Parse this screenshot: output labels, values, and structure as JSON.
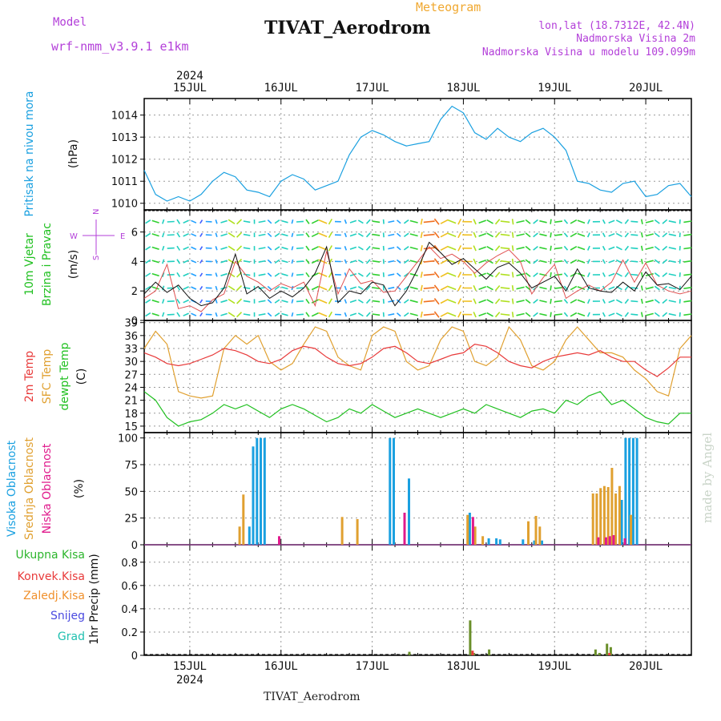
{
  "header": {
    "model_label": "Model",
    "model_name": "wrf-nmm_v3.9.1  e1km",
    "meteogram_label": "Meteogram",
    "station_title": "TIVAT_Aerodrom",
    "lonlat": "lon,lat (18.7312E, 42.4N)",
    "elevation": "Nadmorska Visina 2m",
    "model_elevation": "Nadmorska Visina u modelu 109.099m",
    "footer_station": "TIVAT_Aerodrom",
    "watermark": "made by Angel"
  },
  "colors": {
    "pressure": "#1aa0e0",
    "temp2m": "#e83a3a",
    "sfc_temp": "#e0a030",
    "dewpt": "#20c020",
    "high_cloud": "#1aa0e0",
    "mid_cloud": "#e0a030",
    "low_cloud": "#e01a8c",
    "total_precip": "#2cb52c",
    "conv_precip": "#e83a3a",
    "frozen_precip": "#f0902c",
    "snow": "#4a4ae0",
    "hail": "#20c0b0"
  },
  "chart_data": [
    {
      "type": "line",
      "panel": "pressure",
      "title": "Pritisak na nivou mora",
      "ylabel": "(hPa)",
      "year_label": "2024",
      "x_ticks": [
        "15JUL",
        "16JUL",
        "17JUL",
        "18JUL",
        "19JUL",
        "20JUL"
      ],
      "xlim_hours": [
        -12,
        132
      ],
      "ylim": [
        1009.7,
        1014.75
      ],
      "y_ticks": [
        1010,
        1011,
        1012,
        1013,
        1014
      ],
      "grid": true,
      "series": [
        {
          "name": "Pritisak na nivou mora",
          "x_hours": [
            -12,
            -9,
            -6,
            -3,
            0,
            3,
            6,
            9,
            12,
            15,
            18,
            21,
            24,
            27,
            30,
            33,
            36,
            39,
            42,
            45,
            48,
            51,
            54,
            57,
            60,
            63,
            66,
            69,
            72,
            75,
            78,
            81,
            84,
            87,
            90,
            93,
            96,
            99,
            102,
            105,
            108,
            111,
            114,
            117,
            120,
            123,
            126,
            129,
            132
          ],
          "values": [
            1011.5,
            1010.4,
            1010.1,
            1010.3,
            1010.1,
            1010.4,
            1011.0,
            1011.4,
            1011.2,
            1010.6,
            1010.5,
            1010.3,
            1011.0,
            1011.3,
            1011.1,
            1010.6,
            1010.8,
            1011.0,
            1012.2,
            1013.0,
            1013.3,
            1013.1,
            1012.8,
            1012.6,
            1012.7,
            1012.8,
            1013.8,
            1014.4,
            1014.1,
            1013.2,
            1012.9,
            1013.4,
            1013.0,
            1012.8,
            1013.2,
            1013.4,
            1013.0,
            1012.4,
            1011.0,
            1010.9,
            1010.6,
            1010.5,
            1010.9,
            1011.0,
            1010.3,
            1010.4,
            1010.8,
            1010.9,
            1010.3
          ]
        }
      ]
    },
    {
      "type": "line",
      "panel": "wind",
      "title": "10m Vjetar",
      "subtitle": "Brzina i Pravac",
      "ylabel": "(m/s)",
      "compass": {
        "west": "W",
        "east": "E",
        "north": "N",
        "south": "S"
      },
      "ylim": [
        0,
        7.5
      ],
      "y_ticks": [
        0,
        2,
        4,
        6
      ],
      "grid": true,
      "series": [
        {
          "name": "10m Vjetar",
          "x_hours": [
            -12,
            -9,
            -6,
            -3,
            0,
            3,
            6,
            9,
            12,
            15,
            18,
            21,
            24,
            27,
            30,
            33,
            36,
            39,
            42,
            45,
            48,
            51,
            54,
            57,
            60,
            63,
            66,
            69,
            72,
            75,
            78,
            81,
            84,
            87,
            90,
            93,
            96,
            99,
            102,
            105,
            108,
            111,
            114,
            117,
            120,
            123,
            126,
            129,
            132
          ],
          "values": [
            1.8,
            2.6,
            1.9,
            2.4,
            1.5,
            1.0,
            1.2,
            2.2,
            4.5,
            1.8,
            2.3,
            1.5,
            2.0,
            1.6,
            2.2,
            3.2,
            5.0,
            1.2,
            2.0,
            1.8,
            2.6,
            2.4,
            1.0,
            2.0,
            3.5,
            5.3,
            4.6,
            3.8,
            4.2,
            3.5,
            2.8,
            3.6,
            3.9,
            3.2,
            2.2,
            2.6,
            3.0,
            2.0,
            3.5,
            2.2,
            2.0,
            1.9,
            2.6,
            2.0,
            3.3,
            2.4,
            2.5,
            2.1,
            3.0
          ]
        },
        {
          "name": "gust",
          "x_hours": [
            -12,
            -9,
            -6,
            -3,
            0,
            3,
            6,
            9,
            12,
            15,
            18,
            21,
            24,
            27,
            30,
            33,
            36,
            39,
            42,
            45,
            48,
            51,
            54,
            57,
            60,
            63,
            66,
            69,
            72,
            75,
            78,
            81,
            84,
            87,
            90,
            93,
            96,
            99,
            102,
            105,
            108,
            111,
            114,
            117,
            120,
            123,
            126,
            129,
            132
          ],
          "values": [
            1.5,
            2.0,
            3.8,
            0.8,
            1.0,
            0.6,
            1.4,
            1.8,
            4.0,
            3.0,
            2.6,
            2.0,
            2.5,
            2.2,
            2.6,
            1.0,
            4.7,
            1.8,
            3.5,
            2.5,
            2.7,
            1.9,
            2.0,
            3.0,
            4.0,
            5.0,
            4.2,
            4.5,
            4.0,
            3.2,
            3.9,
            4.4,
            4.8,
            4.0,
            1.8,
            2.9,
            3.8,
            1.5,
            2.0,
            2.4,
            2.0,
            2.6,
            4.1,
            2.6,
            3.9,
            2.4,
            2.0,
            1.8,
            2.0
          ]
        }
      ]
    },
    {
      "type": "line",
      "panel": "temperature",
      "series_labels": [
        "2m Temp",
        "SFC Temp",
        "dewpt Temp"
      ],
      "ylabel": "(C)",
      "ylim": [
        13.5,
        39.5
      ],
      "y_ticks": [
        15,
        18,
        21,
        24,
        27,
        30,
        33,
        36,
        39
      ],
      "grid": true,
      "series": [
        {
          "name": "2m Temp",
          "x_hours": [
            -12,
            -9,
            -6,
            -3,
            0,
            3,
            6,
            9,
            12,
            15,
            18,
            21,
            24,
            27,
            30,
            33,
            36,
            39,
            42,
            45,
            48,
            51,
            54,
            57,
            60,
            63,
            66,
            69,
            72,
            75,
            78,
            81,
            84,
            87,
            90,
            93,
            96,
            99,
            102,
            105,
            108,
            111,
            114,
            117,
            120,
            123,
            126,
            129,
            132
          ],
          "values": [
            32,
            31,
            29.5,
            29,
            29.5,
            30.5,
            31.5,
            33,
            32.5,
            31.5,
            30,
            29.5,
            30.5,
            32.5,
            33.5,
            33,
            31,
            29.5,
            29,
            29.5,
            31,
            33,
            33.5,
            32,
            30,
            29.5,
            30.5,
            31.5,
            32,
            34,
            33.5,
            32,
            30,
            29,
            28.5,
            30,
            31,
            31.5,
            32,
            31.5,
            32.5,
            31,
            30,
            30,
            28,
            26.5,
            28.5,
            31,
            31
          ]
        },
        {
          "name": "SFC Temp",
          "x_hours": [
            -12,
            -9,
            -6,
            -3,
            0,
            3,
            6,
            9,
            12,
            15,
            18,
            21,
            24,
            27,
            30,
            33,
            36,
            39,
            42,
            45,
            48,
            51,
            54,
            57,
            60,
            63,
            66,
            69,
            72,
            75,
            78,
            81,
            84,
            87,
            90,
            93,
            96,
            99,
            102,
            105,
            108,
            111,
            114,
            117,
            120,
            123,
            126,
            129,
            132
          ],
          "values": [
            33,
            37,
            34,
            23,
            22,
            21.5,
            22,
            33,
            36,
            34,
            36,
            30,
            28,
            29.5,
            34,
            38,
            37,
            31,
            29,
            28,
            36,
            38,
            37,
            30,
            28,
            29,
            35,
            38,
            37,
            30,
            29,
            31,
            38,
            35,
            29,
            28,
            30,
            35,
            38,
            35,
            32,
            32,
            31,
            28,
            26,
            23,
            22,
            33,
            36
          ]
        },
        {
          "name": "dewpt Temp",
          "x_hours": [
            -12,
            -9,
            -6,
            -3,
            0,
            3,
            6,
            9,
            12,
            15,
            18,
            21,
            24,
            27,
            30,
            33,
            36,
            39,
            42,
            45,
            48,
            51,
            54,
            57,
            60,
            63,
            66,
            69,
            72,
            75,
            78,
            81,
            84,
            87,
            90,
            93,
            96,
            99,
            102,
            105,
            108,
            111,
            114,
            117,
            120,
            123,
            126,
            129,
            132
          ],
          "values": [
            23,
            21,
            17,
            15,
            16,
            16.5,
            18,
            20,
            19,
            20,
            18.5,
            17,
            19,
            20,
            19,
            17.5,
            16,
            17,
            19,
            18,
            20,
            18.5,
            17,
            18,
            19,
            18,
            17,
            18,
            19,
            18,
            20,
            19,
            18,
            17,
            18.5,
            19,
            18,
            21,
            20,
            22,
            23,
            20,
            21,
            19,
            17,
            16,
            15.5,
            18,
            18
          ]
        }
      ]
    },
    {
      "type": "bar",
      "panel": "clouds",
      "series_labels": [
        "Visoka Oblacnost",
        "Srednja Oblacnost",
        "Niska Oblacnost"
      ],
      "ylabel": "(%)",
      "ylim": [
        0,
        105
      ],
      "y_ticks": [
        0,
        25,
        50,
        75,
        100
      ],
      "grid": true,
      "series": [
        {
          "name": "Visoka Oblacnost",
          "x_hours": [
            16,
            17,
            18,
            19,
            20,
            53,
            54,
            58,
            74,
            79,
            81,
            82,
            88,
            91,
            93,
            114,
            115,
            116,
            117,
            118
          ],
          "values": [
            17,
            92,
            100,
            100,
            100,
            100,
            100,
            62,
            30,
            6,
            6,
            5,
            5,
            4,
            4,
            42,
            100,
            100,
            100,
            100
          ]
        },
        {
          "name": "Srednja Oblacnost",
          "x_hours": [
            13,
            14,
            40,
            44,
            73,
            75,
            77,
            89,
            91,
            92,
            106,
            107,
            108,
            109,
            110,
            111,
            112,
            113,
            116
          ],
          "values": [
            17,
            47,
            26,
            24,
            28,
            17,
            8,
            22,
            27,
            17,
            48,
            48,
            53,
            55,
            54,
            72,
            48,
            55,
            28
          ]
        },
        {
          "name": "Niska Oblacnost",
          "x_hours": [
            23,
            56,
            74,
            107,
            109,
            110,
            111,
            114
          ],
          "values": [
            8,
            30,
            26,
            7,
            7,
            8,
            9,
            6
          ]
        }
      ]
    },
    {
      "type": "bar",
      "panel": "precip",
      "series_labels": [
        "Ukupna Kisa",
        "Konvek.Kisa",
        "Zaledj.Kisa",
        "Snijeg",
        "Grad"
      ],
      "ylabel": "1hr Precip (mm)",
      "year_label": "2024",
      "ylim": [
        0,
        0.95
      ],
      "y_ticks": [
        0,
        0.2,
        0.4,
        0.6,
        0.8
      ],
      "grid": true,
      "series": [
        {
          "name": "Ukupna Kisa",
          "x_hours": [
            58,
            74,
            75,
            79,
            107,
            108,
            110,
            111
          ],
          "values": [
            0.03,
            0.3,
            0.02,
            0.05,
            0.05,
            0.02,
            0.1,
            0.07
          ]
        },
        {
          "name": "Konvek.Kisa",
          "x_hours": [
            74,
            110
          ],
          "values": [
            0.04,
            0.02
          ]
        }
      ]
    }
  ]
}
